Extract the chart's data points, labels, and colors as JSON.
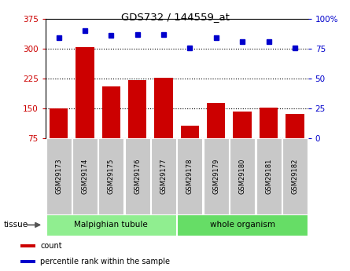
{
  "title": "GDS732 / 144559_at",
  "categories": [
    "GSM29173",
    "GSM29174",
    "GSM29175",
    "GSM29176",
    "GSM29177",
    "GSM29178",
    "GSM29179",
    "GSM29180",
    "GSM29181",
    "GSM29182"
  ],
  "counts": [
    150,
    305,
    205,
    222,
    227,
    107,
    163,
    143,
    152,
    137
  ],
  "percentiles": [
    84,
    90,
    86,
    87,
    87,
    76,
    84,
    81,
    81,
    76
  ],
  "ylim_left": [
    75,
    375
  ],
  "ylim_right": [
    0,
    100
  ],
  "yticks_left": [
    75,
    150,
    225,
    300,
    375
  ],
  "yticks_right": [
    0,
    25,
    50,
    75,
    100
  ],
  "bar_color": "#CC0000",
  "dot_color": "#0000CC",
  "tissue_groups": [
    {
      "label": "Malpighian tubule",
      "start": 0,
      "end": 5,
      "color": "#90EE90"
    },
    {
      "label": "whole organism",
      "start": 5,
      "end": 10,
      "color": "#66DD66"
    }
  ],
  "tissue_label": "tissue",
  "legend_items": [
    {
      "label": "count",
      "color": "#CC0000"
    },
    {
      "label": "percentile rank within the sample",
      "color": "#0000CC"
    }
  ],
  "tick_label_bg": "#C8C8C8",
  "figsize": [
    4.45,
    3.45
  ],
  "dpi": 100
}
